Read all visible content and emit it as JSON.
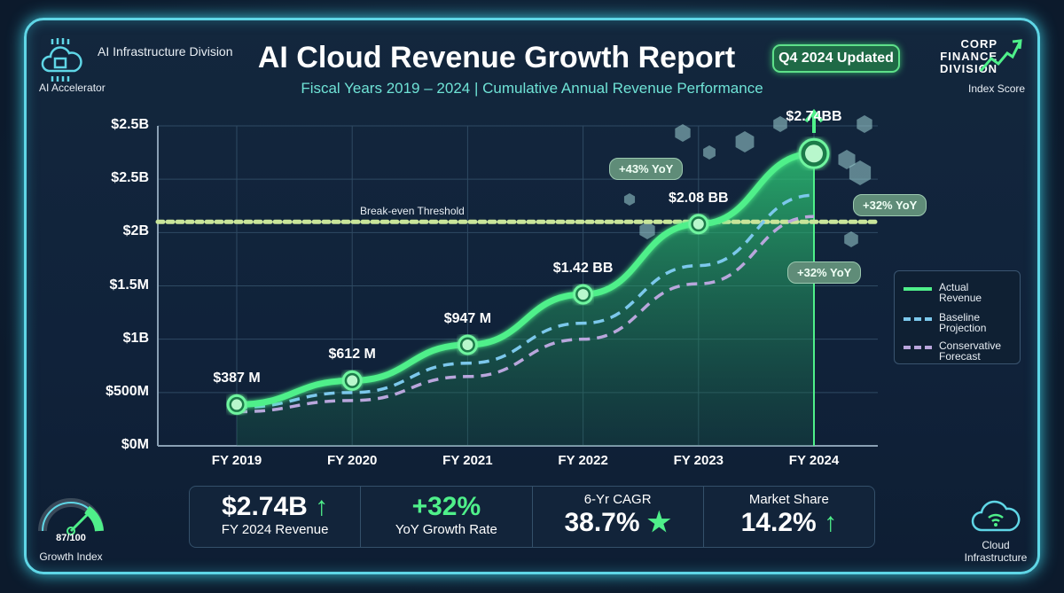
{
  "header": {
    "title": "AI Cloud Revenue Growth Report",
    "subtitle": "Fiscal Years 2019 – 2024 | Cumulative Annual Revenue Performance",
    "badge": "Q4 2024 Updated",
    "left_division": "AI Infrastructure Division",
    "left_caption": "AI Accelerator",
    "right_logo_lines": [
      "CORP",
      "FINANCE",
      "DIVISION"
    ],
    "right_caption": "Index Score"
  },
  "colors": {
    "actual": "#4ff08a",
    "baseline": "#7cc8ec",
    "conservative": "#b9a6dc",
    "threshold": "#c9e59a",
    "frame": "#5fd6e6",
    "background": "#0c1a2c"
  },
  "chart_data": {
    "type": "line",
    "categories": [
      "FY 2019",
      "FY 2020",
      "FY 2021",
      "FY 2022",
      "FY 2023",
      "FY 2024"
    ],
    "y_tick_labels": [
      "$0M",
      "$500M",
      "$1B",
      "$1.5M",
      "$2B",
      "$2.5B",
      "$2.5B"
    ],
    "ylim_millions": [
      0,
      3000
    ],
    "grid": true,
    "legend_placement": "right",
    "series": [
      {
        "name": "Actual Revenue",
        "values": [
          387,
          612,
          947,
          1420,
          2080,
          2740
        ],
        "style": "solid",
        "fill": true,
        "data_labels": [
          "$387 M",
          "$612 M",
          "$947 M",
          "$1.42 BB",
          "$2.08 BB",
          "$2.74BB"
        ]
      },
      {
        "name": "Baseline Projection",
        "values": [
          360,
          500,
          775,
          1150,
          1690,
          2350
        ],
        "style": "dashed"
      },
      {
        "name": "Conservative Forecast",
        "values": [
          320,
          425,
          650,
          1000,
          1520,
          2150
        ],
        "style": "dashed"
      }
    ],
    "threshold": {
      "label": "Break-even Threshold",
      "value": 2100
    },
    "annotations": [
      "+43% YoY",
      "+32% YoY",
      "+32% YoY"
    ]
  },
  "stats": [
    {
      "value": "$2.74B",
      "label": "FY 2024 Revenue",
      "icon": "arrow-up-icon"
    },
    {
      "value": "+32%",
      "label": "YoY Growth Rate"
    },
    {
      "label": "6-Yr CAGR",
      "value": "38.7%",
      "icon": "star-icon"
    },
    {
      "label": "Market Share",
      "value": "14.2%",
      "icon": "arrow-up-icon"
    }
  ],
  "gauge": {
    "value_text": "87/100",
    "label": "Growth Index",
    "value": 87,
    "max": 100
  },
  "cloud": {
    "label_lines": [
      "Cloud",
      "Infrastructure"
    ]
  }
}
